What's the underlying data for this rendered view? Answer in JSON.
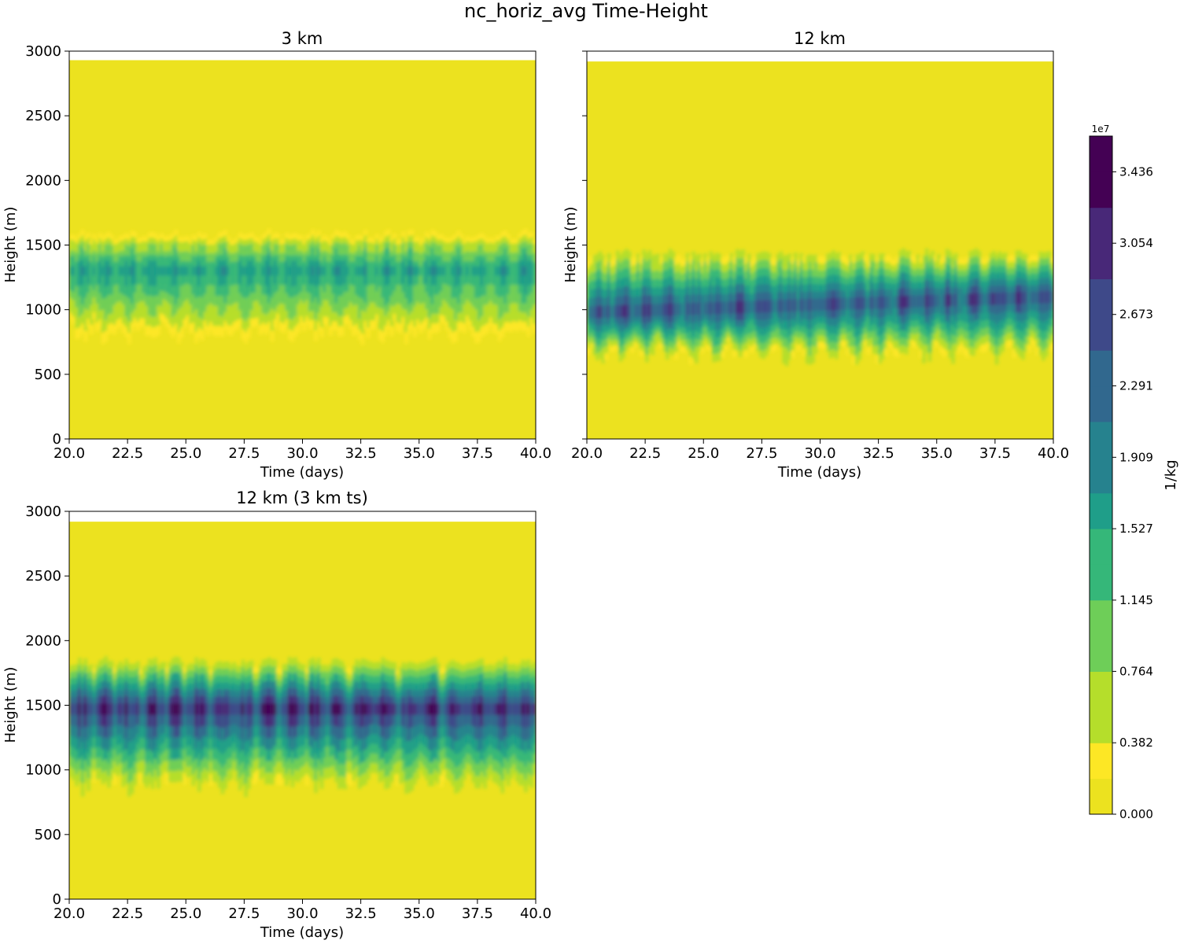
{
  "figure": {
    "title": "nc_horiz_avg Time-Height"
  },
  "colors": {
    "background": "#ffffff",
    "field_base": "#ece21f",
    "viridis": [
      "#fde725",
      "#b5de2b",
      "#6ece58",
      "#35b779",
      "#1f9e89",
      "#26828e",
      "#31688e",
      "#3e4989",
      "#482878",
      "#440154"
    ]
  },
  "chart_data": [
    {
      "type": "contourf",
      "id": "panel-3km",
      "title": "3 km",
      "xlabel": "Time (days)",
      "ylabel": "Height (m)",
      "xlim": [
        20.0,
        40.0
      ],
      "ylim": [
        0,
        3000
      ],
      "xticks": [
        "20.0",
        "22.5",
        "25.0",
        "27.5",
        "30.0",
        "32.5",
        "35.0",
        "37.5",
        "40.0"
      ],
      "yticks": [
        "0",
        "500",
        "1000",
        "1500",
        "2000",
        "2500",
        "3000"
      ],
      "show_yticklabels": true,
      "data_top": 2930,
      "cloud_layer": {
        "center": 1300,
        "core_half_thickness": 120,
        "base_low": 780,
        "top_high": 1600,
        "peak_value": 18000000.0,
        "cycle_period_days": 1.0
      }
    },
    {
      "type": "contourf",
      "id": "panel-12km",
      "title": "12 km",
      "xlabel": "Time (days)",
      "ylabel": "Height (m)",
      "xlim": [
        20.0,
        40.0
      ],
      "ylim": [
        0,
        3000
      ],
      "xticks": [
        "20.0",
        "22.5",
        "25.0",
        "27.5",
        "30.0",
        "32.5",
        "35.0",
        "37.5",
        "40.0"
      ],
      "yticks": [
        "0",
        "500",
        "1000",
        "1500",
        "2000",
        "2500",
        "3000"
      ],
      "show_yticklabels": false,
      "data_top": 2920,
      "cloud_layer": {
        "center_start": 980,
        "center_end": 1100,
        "core_half_thickness": 160,
        "base_low": 620,
        "top_high": 1450,
        "peak_value": 30000000.0,
        "cycle_period_days": 1.0
      }
    },
    {
      "type": "contourf",
      "id": "panel-12km-3kmts",
      "title": "12 km (3 km ts)",
      "xlabel": "Time (days)",
      "ylabel": "Height (m)",
      "xlim": [
        20.0,
        40.0
      ],
      "ylim": [
        0,
        3000
      ],
      "xticks": [
        "20.0",
        "22.5",
        "25.0",
        "27.5",
        "30.0",
        "32.5",
        "35.0",
        "37.5",
        "40.0"
      ],
      "yticks": [
        "0",
        "500",
        "1000",
        "1500",
        "2000",
        "2500",
        "3000"
      ],
      "show_yticklabels": true,
      "data_top": 2920,
      "cloud_layer": {
        "center": 1470,
        "core_half_thickness": 150,
        "base_low": 850,
        "top_high": 1850,
        "peak_value": 35000000.0,
        "cycle_period_days": 1.0
      }
    }
  ],
  "colorbar": {
    "label": "1/kg",
    "exponent_label": "1e7",
    "vmin": 0.0,
    "vmax": 3.627,
    "n_levels": 19,
    "tick_labels": [
      "0.000",
      "0.382",
      "0.764",
      "1.145",
      "1.527",
      "1.909",
      "2.291",
      "2.673",
      "3.054",
      "3.436"
    ]
  }
}
